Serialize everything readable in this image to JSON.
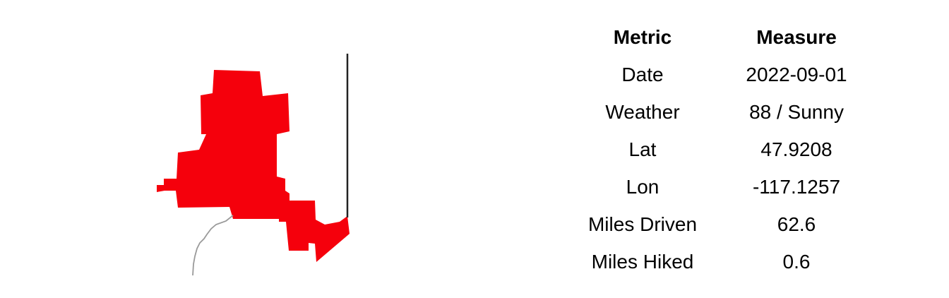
{
  "map": {
    "region_color": "#f5000c",
    "boundary_color": "#222222",
    "route_color": "#9a9a9a"
  },
  "table": {
    "headers": {
      "metric": "Metric",
      "measure": "Measure"
    },
    "rows": [
      {
        "metric": "Date",
        "measure": "2022-09-01"
      },
      {
        "metric": "Weather",
        "measure": "88 / Sunny"
      },
      {
        "metric": "Lat",
        "measure": "47.9208"
      },
      {
        "metric": "Lon",
        "measure": "-117.1257"
      },
      {
        "metric": "Miles Driven",
        "measure": "62.6"
      },
      {
        "metric": "Miles Hiked",
        "measure": "0.6"
      }
    ]
  }
}
